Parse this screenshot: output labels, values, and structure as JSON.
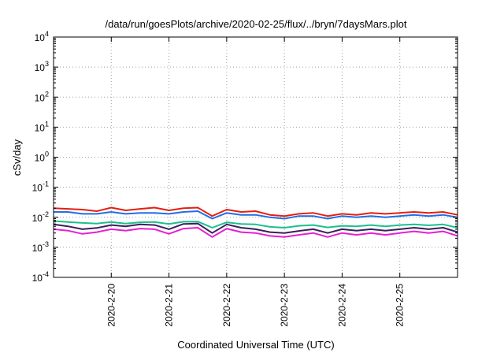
{
  "chart_data": {
    "type": "line",
    "title": "/data/run/goesPlots/archive/2020-02-25/flux/../bryn/7daysMars.plot",
    "xlabel": "Coordinated Universal Time (UTC)",
    "ylabel": "cSv/day",
    "yscale": "log",
    "ylim": [
      0.0001,
      10000
    ],
    "y_ticks": [
      {
        "value": 0.0001,
        "base": "10",
        "exp": "-4"
      },
      {
        "value": 0.001,
        "base": "10",
        "exp": "-3"
      },
      {
        "value": 0.01,
        "base": "10",
        "exp": "-2"
      },
      {
        "value": 0.1,
        "base": "10",
        "exp": "-1"
      },
      {
        "value": 1,
        "base": "10",
        "exp": "0"
      },
      {
        "value": 10,
        "base": "10",
        "exp": "1"
      },
      {
        "value": 100,
        "base": "10",
        "exp": "2"
      },
      {
        "value": 1000,
        "base": "10",
        "exp": "3"
      },
      {
        "value": 10000,
        "base": "10",
        "exp": "4"
      }
    ],
    "xlim": [
      "2020-02-19 00:00",
      "2020-02-26 00:00"
    ],
    "x_ticks": [
      {
        "value": "2020-02-20 00:00",
        "label": "2020-2-20"
      },
      {
        "value": "2020-02-21 00:00",
        "label": "2020-2-21"
      },
      {
        "value": "2020-02-22 00:00",
        "label": "2020-2-22"
      },
      {
        "value": "2020-02-23 00:00",
        "label": "2020-2-23"
      },
      {
        "value": "2020-02-24 00:00",
        "label": "2020-2-24"
      },
      {
        "value": "2020-02-25 00:00",
        "label": "2020-2-25"
      }
    ],
    "grid": true,
    "legend": "none",
    "x": [
      "2020-02-19 00:00",
      "2020-02-19 06:00",
      "2020-02-19 12:00",
      "2020-02-19 18:00",
      "2020-02-20 00:00",
      "2020-02-20 06:00",
      "2020-02-20 12:00",
      "2020-02-20 18:00",
      "2020-02-21 00:00",
      "2020-02-21 06:00",
      "2020-02-21 12:00",
      "2020-02-21 18:00",
      "2020-02-22 00:00",
      "2020-02-22 06:00",
      "2020-02-22 12:00",
      "2020-02-22 18:00",
      "2020-02-23 00:00",
      "2020-02-23 06:00",
      "2020-02-23 12:00",
      "2020-02-23 18:00",
      "2020-02-24 00:00",
      "2020-02-24 06:00",
      "2020-02-24 12:00",
      "2020-02-24 18:00",
      "2020-02-25 00:00",
      "2020-02-25 06:00",
      "2020-02-25 12:00",
      "2020-02-25 18:00",
      "2020-02-26 00:00"
    ],
    "series": [
      {
        "color": "#e51e10",
        "values": [
          0.02,
          0.019,
          0.018,
          0.016,
          0.021,
          0.017,
          0.019,
          0.021,
          0.017,
          0.02,
          0.021,
          0.011,
          0.018,
          0.015,
          0.016,
          0.012,
          0.011,
          0.013,
          0.014,
          0.011,
          0.013,
          0.012,
          0.014,
          0.013,
          0.014,
          0.015,
          0.014,
          0.015,
          0.012
        ]
      },
      {
        "color": "#1f6fe5",
        "values": [
          0.015,
          0.015,
          0.013,
          0.013,
          0.015,
          0.013,
          0.014,
          0.014,
          0.013,
          0.015,
          0.016,
          0.009,
          0.014,
          0.012,
          0.012,
          0.01,
          0.009,
          0.011,
          0.011,
          0.009,
          0.011,
          0.01,
          0.011,
          0.01,
          0.011,
          0.012,
          0.011,
          0.012,
          0.01
        ]
      },
      {
        "color": "#1dbf8e",
        "values": [
          0.0075,
          0.007,
          0.0065,
          0.0062,
          0.007,
          0.0062,
          0.0068,
          0.007,
          0.006,
          0.0071,
          0.0072,
          0.0045,
          0.0068,
          0.006,
          0.0058,
          0.0048,
          0.0045,
          0.0052,
          0.0055,
          0.0046,
          0.0052,
          0.005,
          0.0055,
          0.005,
          0.0055,
          0.0058,
          0.0054,
          0.0058,
          0.0045
        ]
      },
      {
        "color": "#3b1f5a",
        "values": [
          0.0058,
          0.005,
          0.004,
          0.0044,
          0.0055,
          0.005,
          0.0058,
          0.0055,
          0.004,
          0.006,
          0.0062,
          0.003,
          0.0058,
          0.0045,
          0.004,
          0.0032,
          0.003,
          0.0035,
          0.004,
          0.003,
          0.004,
          0.0036,
          0.004,
          0.0036,
          0.004,
          0.0045,
          0.004,
          0.0045,
          0.0032
        ]
      },
      {
        "color": "#e61fd3",
        "values": [
          0.004,
          0.0036,
          0.0028,
          0.0032,
          0.004,
          0.0036,
          0.0042,
          0.004,
          0.0028,
          0.0042,
          0.0045,
          0.0022,
          0.0042,
          0.0032,
          0.003,
          0.0024,
          0.0022,
          0.0026,
          0.003,
          0.0022,
          0.003,
          0.0026,
          0.003,
          0.0026,
          0.003,
          0.0034,
          0.003,
          0.0034,
          0.0024
        ]
      }
    ]
  }
}
